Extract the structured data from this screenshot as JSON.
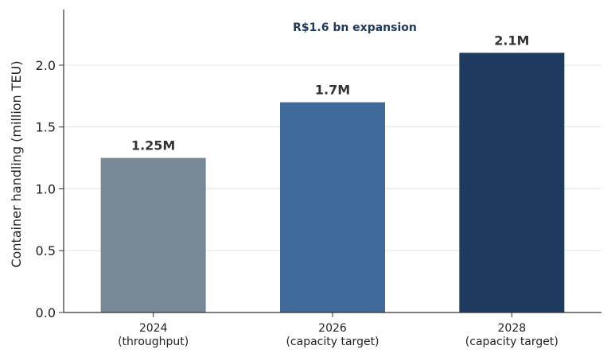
{
  "chart_data": {
    "type": "bar",
    "categories": [
      "2024\n(throughput)",
      "2026\n(capacity target)",
      "2028\n(capacity target)"
    ],
    "category_lines": [
      [
        "2024",
        "(throughput)"
      ],
      [
        "2026",
        "(capacity target)"
      ],
      [
        "2028",
        "(capacity target)"
      ]
    ],
    "values": [
      1.25,
      1.7,
      2.1
    ],
    "data_labels": [
      "1.25M",
      "1.7M",
      "2.1M"
    ],
    "bar_colors": [
      "#788896",
      "#3f6a99",
      "#1f3a5f"
    ],
    "title": "",
    "xlabel": "",
    "ylabel": "Container handling (million TEU)",
    "ylim": [
      0,
      2.45
    ],
    "yticks": [
      0.0,
      0.5,
      1.0,
      1.5,
      2.0
    ],
    "ytick_labels": [
      "0.0",
      "0.5",
      "1.0",
      "1.5",
      "2.0"
    ],
    "grid": "horizontal",
    "annotation": {
      "text": "R$1.6 bn expansion",
      "color": "#1f3a5f"
    }
  }
}
